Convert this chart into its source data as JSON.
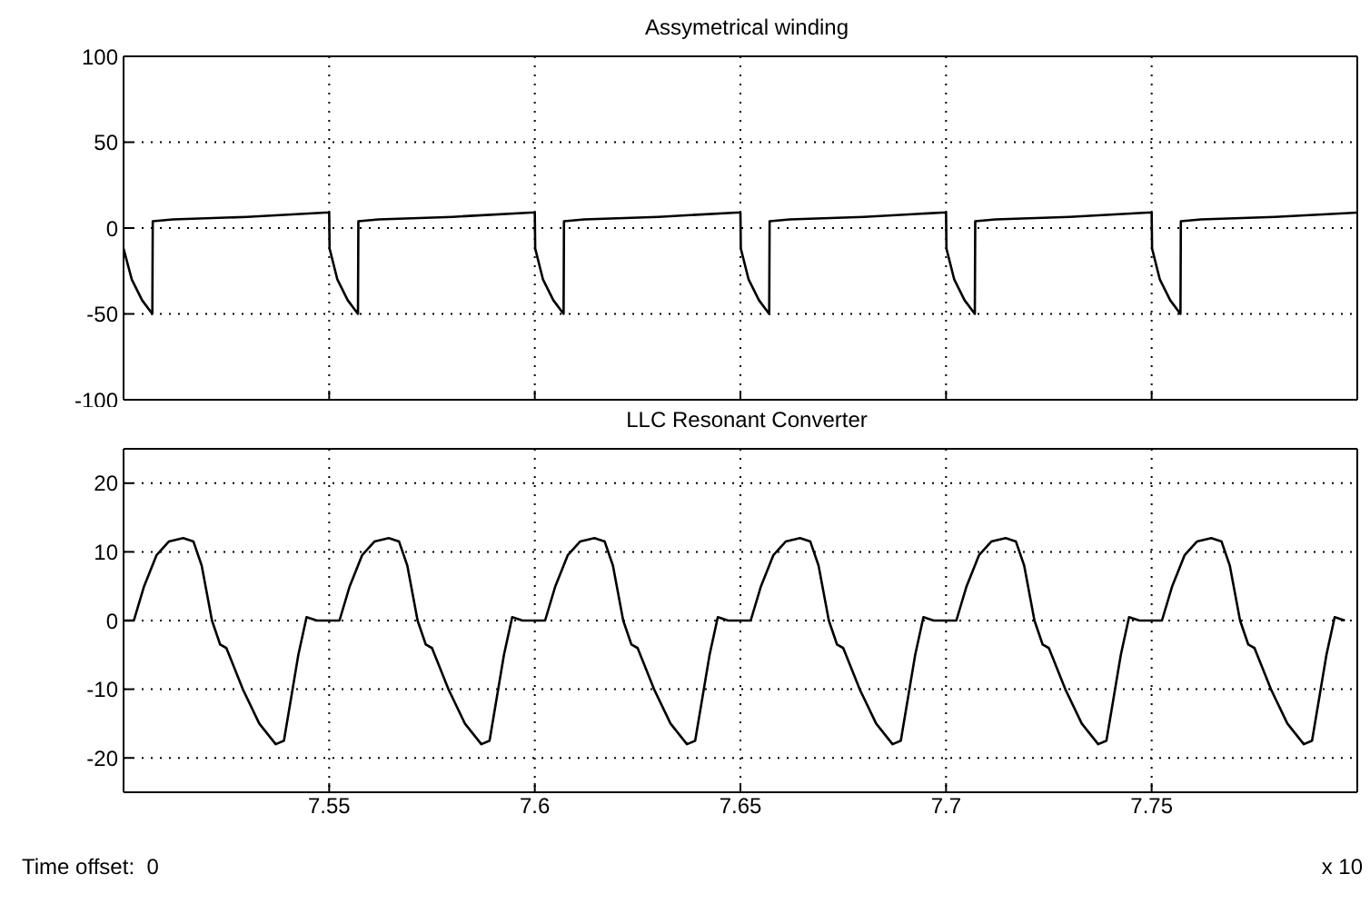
{
  "chart_data": [
    {
      "type": "line",
      "title": "Assymetrical winding",
      "xlim": [
        7.5,
        7.8
      ],
      "xticks": [
        7.55,
        7.6,
        7.65,
        7.7,
        7.75
      ],
      "ylim": [
        -100,
        100
      ],
      "yticks": [
        -100,
        -50,
        0,
        50,
        100
      ],
      "grid": true,
      "tick_labels": "y",
      "legend": false,
      "marker": "none",
      "line_style": "solid",
      "x": [
        7.5,
        7.502,
        7.5045,
        7.507,
        7.5071,
        7.512,
        7.53,
        7.549,
        7.55,
        7.5501,
        7.552,
        7.5545,
        7.557,
        7.5571,
        7.562,
        7.58,
        7.599,
        7.6,
        7.6001,
        7.602,
        7.6045,
        7.607,
        7.6071,
        7.612,
        7.63,
        7.649,
        7.65,
        7.6501,
        7.652,
        7.6545,
        7.657,
        7.6571,
        7.662,
        7.68,
        7.699,
        7.7,
        7.7001,
        7.702,
        7.7045,
        7.707,
        7.7071,
        7.712,
        7.73,
        7.749,
        7.75,
        7.7501,
        7.752,
        7.7545,
        7.757,
        7.7571,
        7.762,
        7.78,
        7.8
      ],
      "series": [
        {
          "color": "#000000",
          "values": [
            -12,
            -30,
            -42,
            -50,
            4,
            5,
            6.5,
            9,
            9,
            -12,
            -30,
            -42,
            -50,
            4,
            5,
            6.5,
            9,
            9,
            -12,
            -30,
            -42,
            -50,
            4,
            5,
            6.5,
            9,
            9,
            -12,
            -30,
            -42,
            -50,
            4,
            5,
            6.5,
            9,
            9,
            -12,
            -30,
            -42,
            -50,
            4,
            5,
            6.5,
            9,
            9,
            -12,
            -30,
            -42,
            -50,
            4,
            5,
            6.5,
            9
          ]
        }
      ]
    },
    {
      "type": "line",
      "title": "LLC Resonant Converter",
      "xlim": [
        7.5,
        7.8
      ],
      "xticks": [
        7.55,
        7.6,
        7.65,
        7.7,
        7.75
      ],
      "ylim": [
        -25,
        25
      ],
      "yticks": [
        -20,
        -10,
        0,
        10,
        20
      ],
      "grid": true,
      "legend": false,
      "marker": "none",
      "line_style": "solid",
      "annotations": [
        "Time offset:  0",
        "x 10"
      ],
      "x": [
        7.5,
        7.5025,
        7.505,
        7.508,
        7.511,
        7.5145,
        7.517,
        7.519,
        7.5215,
        7.5235,
        7.525,
        7.529,
        7.533,
        7.537,
        7.539,
        7.5425,
        7.5445,
        7.547,
        7.5525,
        7.555,
        7.558,
        7.561,
        7.5645,
        7.567,
        7.569,
        7.5715,
        7.5735,
        7.575,
        7.579,
        7.583,
        7.587,
        7.589,
        7.5925,
        7.5945,
        7.597,
        7.6025,
        7.605,
        7.608,
        7.611,
        7.6145,
        7.617,
        7.619,
        7.6215,
        7.6235,
        7.625,
        7.629,
        7.633,
        7.637,
        7.639,
        7.6425,
        7.6445,
        7.647,
        7.6525,
        7.655,
        7.658,
        7.661,
        7.6645,
        7.667,
        7.669,
        7.6715,
        7.6735,
        7.675,
        7.679,
        7.683,
        7.687,
        7.689,
        7.6925,
        7.6945,
        7.697,
        7.7025,
        7.705,
        7.708,
        7.711,
        7.7145,
        7.717,
        7.719,
        7.7215,
        7.7235,
        7.725,
        7.729,
        7.733,
        7.737,
        7.739,
        7.7425,
        7.7445,
        7.747,
        7.7525,
        7.755,
        7.758,
        7.761,
        7.7645,
        7.767,
        7.769,
        7.7715,
        7.7735,
        7.775,
        7.779,
        7.783,
        7.787,
        7.789,
        7.7925,
        7.7945,
        7.797
      ],
      "series": [
        {
          "color": "#000000",
          "values": [
            0,
            0,
            5,
            9.5,
            11.5,
            12,
            11.5,
            8,
            0,
            -3.5,
            -4,
            -10,
            -15,
            -18,
            -17.5,
            -5,
            0.5,
            0,
            0,
            5,
            9.5,
            11.5,
            12,
            11.5,
            8,
            0,
            -3.5,
            -4,
            -10,
            -15,
            -18,
            -17.5,
            -5,
            0.5,
            0,
            0,
            5,
            9.5,
            11.5,
            12,
            11.5,
            8,
            0,
            -3.5,
            -4,
            -10,
            -15,
            -18,
            -17.5,
            -5,
            0.5,
            0,
            0,
            5,
            9.5,
            11.5,
            12,
            11.5,
            8,
            0,
            -3.5,
            -4,
            -10,
            -15,
            -18,
            -17.5,
            -5,
            0.5,
            0,
            0,
            5,
            9.5,
            11.5,
            12,
            11.5,
            8,
            0,
            -3.5,
            -4,
            -10,
            -15,
            -18,
            -17.5,
            -5,
            0.5,
            0,
            0,
            5,
            9.5,
            11.5,
            12,
            11.5,
            8,
            0,
            -3.5,
            -4,
            -10,
            -15,
            -18,
            -17.5,
            -5,
            0.5,
            0
          ]
        }
      ]
    }
  ]
}
